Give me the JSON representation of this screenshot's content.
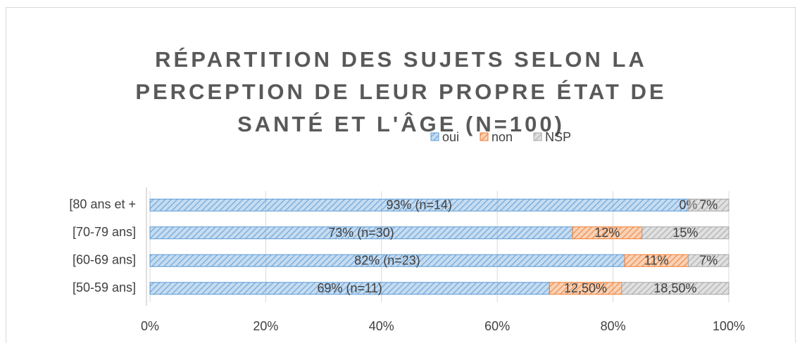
{
  "chart_data": {
    "type": "stacked-bar-horizontal",
    "title": "RÉPARTITION DES SUJETS SELON LA PERCEPTION DE LEUR PROPRE ÉTAT DE SANTÉ ET L'ÂGE (N=100)",
    "categories": [
      "[80 ans et +",
      "[70-79 ans]",
      "[60-69 ans]",
      "[50-59 ans]"
    ],
    "series": [
      {
        "name": "oui",
        "color": "#5b9bd5",
        "values": [
          93,
          73,
          82,
          69
        ],
        "value_labels": [
          "93% (n=14)",
          "73% (n=30)",
          "82% (n=23)",
          "69% (n=11)"
        ]
      },
      {
        "name": "non",
        "color": "#ed7d31",
        "values": [
          0,
          12,
          11,
          12.5
        ],
        "value_labels": [
          "0%",
          "12%",
          "11%",
          "12,50%"
        ]
      },
      {
        "name": "NSP",
        "color": "#a5a5a5",
        "values": [
          7,
          15,
          7,
          18.5
        ],
        "value_labels": [
          "7%",
          "15%",
          "7%",
          "18,50%"
        ]
      }
    ],
    "xlim": [
      0,
      100
    ],
    "xticks": [
      {
        "value": 0,
        "label": "0%"
      },
      {
        "value": 20,
        "label": "20%"
      },
      {
        "value": 40,
        "label": "40%"
      },
      {
        "value": 60,
        "label": "60%"
      },
      {
        "value": 80,
        "label": "80%"
      },
      {
        "value": 100,
        "label": "100%"
      }
    ],
    "grid": true,
    "legend": "top"
  }
}
